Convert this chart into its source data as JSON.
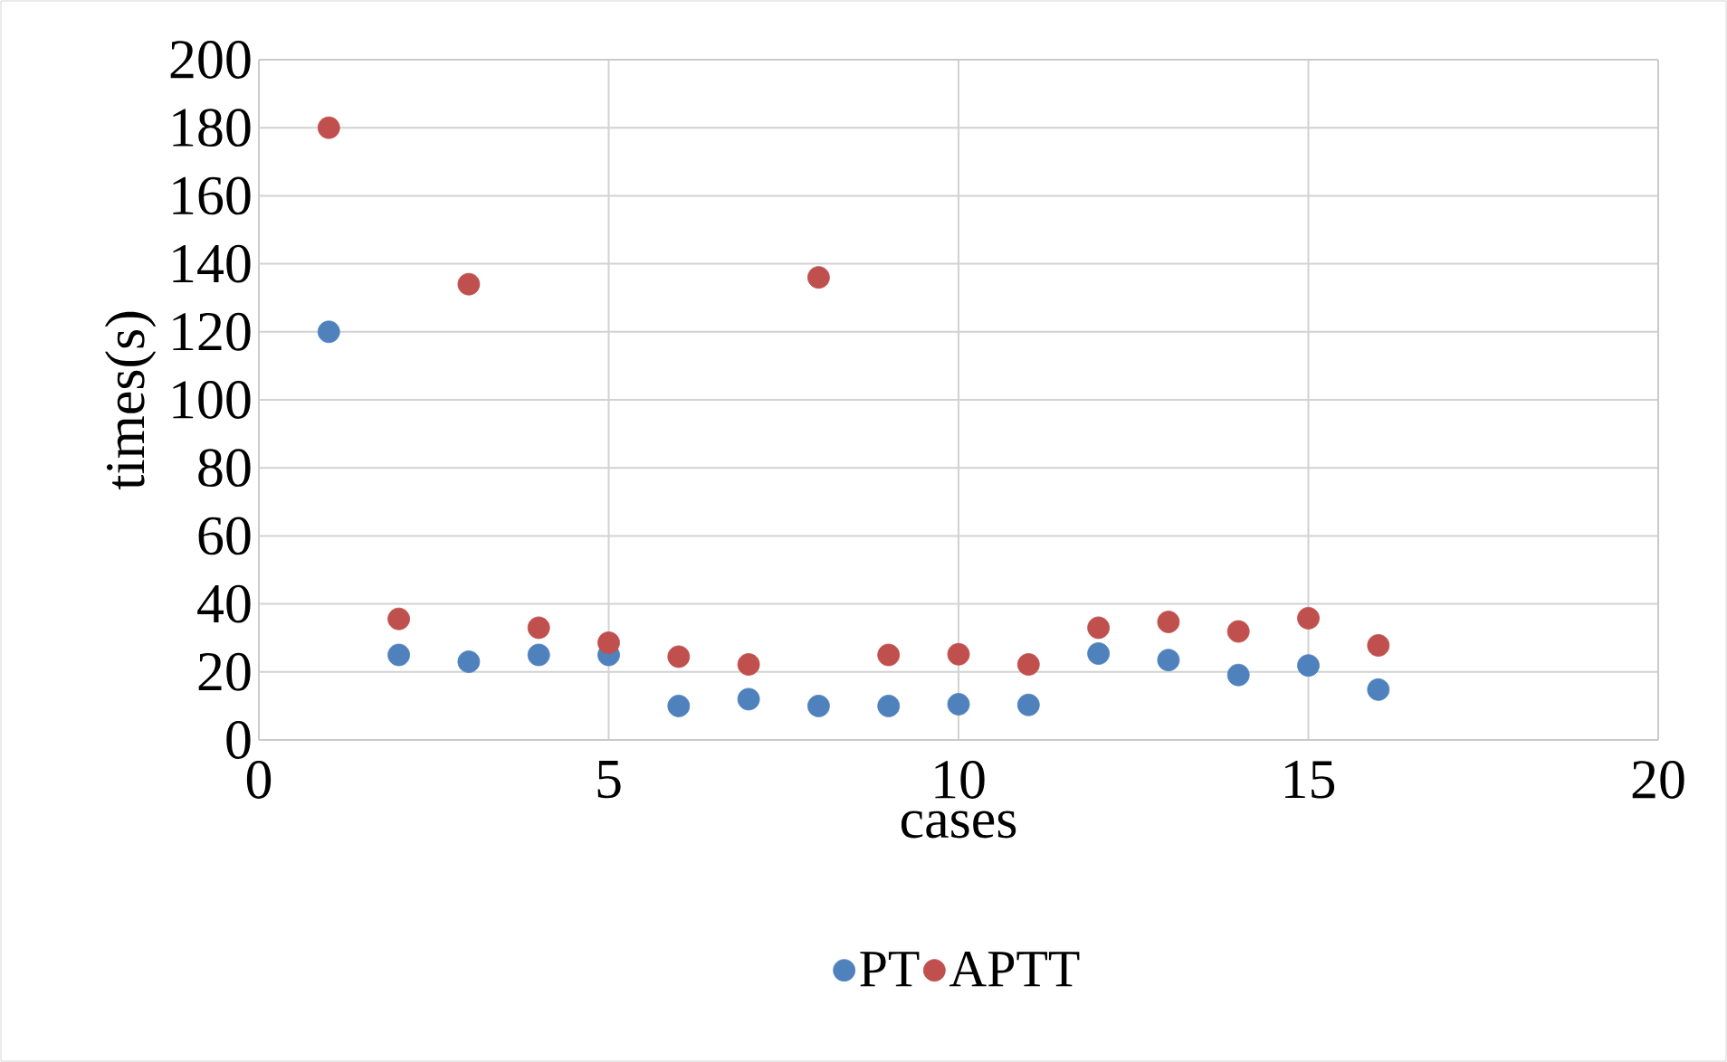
{
  "chart_data": {
    "type": "scatter",
    "xlabel": "cases",
    "ylabel": "times(s)",
    "xlim": [
      0,
      20
    ],
    "xticks": [
      0,
      5,
      10,
      15,
      20
    ],
    "ylim": [
      0,
      200
    ],
    "yticks": [
      0,
      20,
      40,
      60,
      80,
      100,
      120,
      140,
      160,
      180,
      200
    ],
    "grid": true,
    "legend": "bottom",
    "marker": "circle",
    "x": [
      1,
      2,
      3,
      4,
      5,
      6,
      7,
      8,
      9,
      10,
      11,
      12,
      13,
      14,
      15,
      16
    ],
    "series": [
      {
        "name": "PT",
        "color": "#4f81bd",
        "values": [
          120,
          25,
          23,
          25,
          25,
          10,
          12,
          10,
          10,
          10.5,
          10.3,
          25.4,
          23.5,
          19.1,
          21.9,
          14.8
        ]
      },
      {
        "name": "APTT",
        "color": "#c0504d",
        "values": [
          180,
          35.6,
          134,
          33,
          28.6,
          24.5,
          22.2,
          136,
          25,
          25.2,
          22.2,
          33,
          34.7,
          31.9,
          35.8,
          27.8
        ]
      }
    ]
  }
}
